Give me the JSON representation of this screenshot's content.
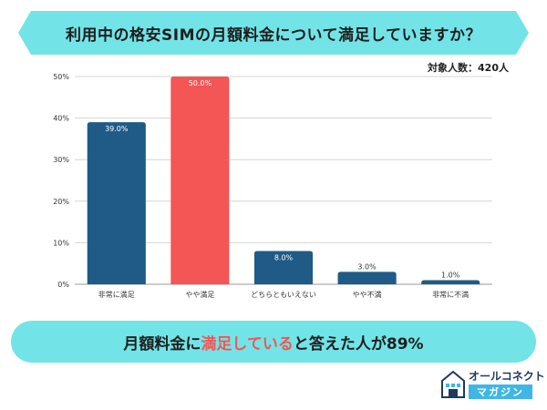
{
  "title": "利用中の格安SIMの月額料金について満足していますか？",
  "sample_size": "対象人数：420人",
  "summary": {
    "prefix": "月額料金に",
    "highlight": "満足している",
    "suffix": "と答えた人が89%"
  },
  "brand": {
    "top": "オールコネクト",
    "bottom": "マガジン"
  },
  "colors": {
    "banner": "#72e4e7",
    "bar_default": "#1f5b86",
    "bar_highlight": "#f45555",
    "summary_highlight": "#f45555"
  },
  "chart_data": {
    "type": "bar",
    "categories": [
      "非常に満足",
      "やや満足",
      "どちらともいえない",
      "やや不満",
      "非常に不満"
    ],
    "values": [
      39.0,
      50.0,
      8.0,
      3.0,
      1.0
    ],
    "data_labels": [
      "39.0%",
      "50.0%",
      "8.0%",
      "3.0%",
      "1.0%"
    ],
    "highlight_index": 1,
    "ylim": [
      0,
      50
    ],
    "yticks": [
      0,
      10,
      20,
      30,
      40,
      50
    ],
    "ytick_labels": [
      "0%",
      "10%",
      "20%",
      "30%",
      "40%",
      "50%"
    ],
    "grid": true,
    "title": "",
    "xlabel": "",
    "ylabel": ""
  }
}
